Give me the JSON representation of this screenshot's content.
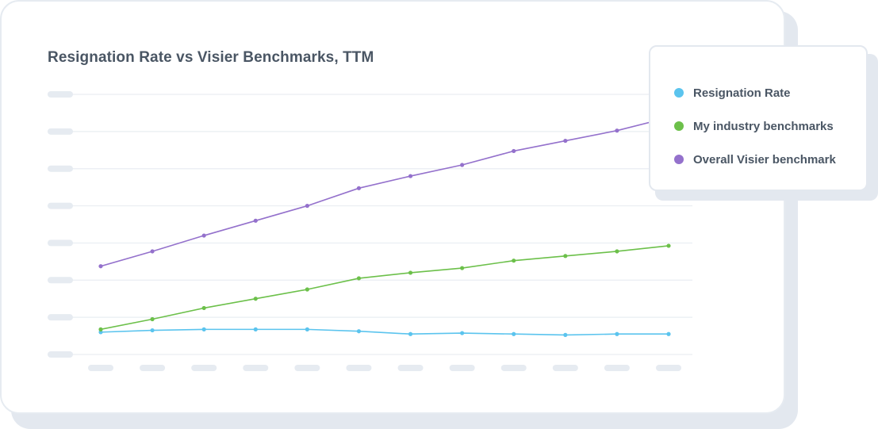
{
  "chart_data": {
    "type": "line",
    "title": "Resignation Rate vs Visier Benchmarks, TTM",
    "xlabel": "",
    "ylabel": "",
    "categories": [
      "",
      "",
      "",
      "",
      "",
      "",
      "",
      "",
      "",
      "",
      "",
      ""
    ],
    "ylim": [
      0,
      14
    ],
    "grid": true,
    "legend_position": "top-right",
    "series": [
      {
        "name": "Resignation Rate",
        "color": "#5bc4ee",
        "values": [
          1.2,
          1.3,
          1.35,
          1.35,
          1.35,
          1.25,
          1.1,
          1.15,
          1.1,
          1.05,
          1.1,
          1.1
        ]
      },
      {
        "name": "My industry benchmarks",
        "color": "#6cc04a",
        "values": [
          1.35,
          1.9,
          2.5,
          3.0,
          3.5,
          4.1,
          4.4,
          4.65,
          5.05,
          5.3,
          5.55,
          5.85
        ]
      },
      {
        "name": "Overall Visier benchmark",
        "color": "#9471cc",
        "values": [
          4.75,
          5.55,
          6.4,
          7.2,
          8.0,
          8.95,
          9.6,
          10.2,
          10.95,
          11.5,
          12.05,
          12.75
        ]
      }
    ]
  }
}
